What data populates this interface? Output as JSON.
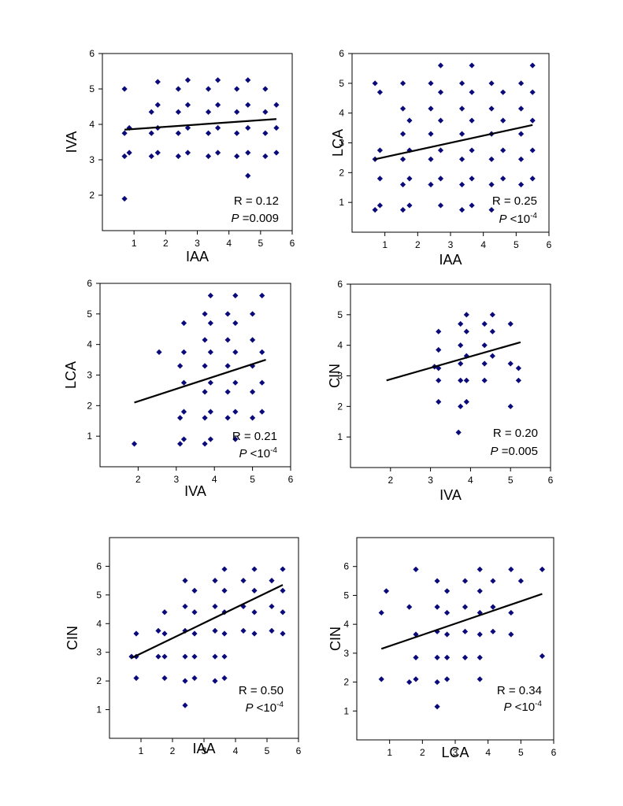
{
  "chart_data": [
    {
      "type": "scatter",
      "xlabel": "IAA",
      "ylabel": "IVA",
      "xlim": [
        0,
        6
      ],
      "ylim": [
        1,
        6
      ],
      "xticks": [
        "1",
        "2",
        "3",
        "4",
        "5",
        "6"
      ],
      "yticks": [
        "2",
        "3",
        "4",
        "5",
        "6"
      ],
      "r_label": "R = 0.12",
      "p_prefix": "P",
      "p_value": " =0.009",
      "p_sup": "",
      "trend": [
        [
          0.7,
          3.85
        ],
        [
          5.5,
          4.15
        ]
      ],
      "points": [
        [
          0.7,
          1.9
        ],
        [
          0.7,
          3.1
        ],
        [
          0.7,
          3.75
        ],
        [
          0.7,
          5.0
        ],
        [
          0.85,
          3.2
        ],
        [
          0.85,
          3.9
        ],
        [
          1.55,
          3.1
        ],
        [
          1.55,
          3.75
        ],
        [
          1.55,
          4.35
        ],
        [
          1.75,
          3.2
        ],
        [
          1.75,
          3.9
        ],
        [
          1.75,
          4.55
        ],
        [
          1.75,
          5.2
        ],
        [
          2.4,
          3.1
        ],
        [
          2.4,
          3.75
        ],
        [
          2.4,
          4.35
        ],
        [
          2.4,
          5.0
        ],
        [
          2.7,
          3.2
        ],
        [
          2.7,
          3.9
        ],
        [
          2.7,
          4.55
        ],
        [
          2.7,
          5.25
        ],
        [
          3.35,
          3.1
        ],
        [
          3.35,
          3.75
        ],
        [
          3.35,
          4.35
        ],
        [
          3.35,
          5.0
        ],
        [
          3.65,
          3.2
        ],
        [
          3.65,
          3.9
        ],
        [
          3.65,
          4.55
        ],
        [
          3.65,
          5.25
        ],
        [
          4.25,
          3.1
        ],
        [
          4.25,
          3.75
        ],
        [
          4.25,
          4.35
        ],
        [
          4.25,
          5.0
        ],
        [
          4.6,
          2.55
        ],
        [
          4.6,
          3.2
        ],
        [
          4.6,
          3.9
        ],
        [
          4.6,
          4.55
        ],
        [
          4.6,
          5.25
        ],
        [
          5.15,
          3.1
        ],
        [
          5.15,
          3.75
        ],
        [
          5.15,
          4.35
        ],
        [
          5.15,
          5.0
        ],
        [
          5.5,
          3.2
        ],
        [
          5.5,
          3.9
        ],
        [
          5.5,
          4.55
        ]
      ]
    },
    {
      "type": "scatter",
      "xlabel": "IAA",
      "ylabel": "LCA",
      "xlim": [
        0,
        6
      ],
      "ylim": [
        0,
        6
      ],
      "xticks": [
        "1",
        "2",
        "3",
        "4",
        "5",
        "6"
      ],
      "yticks": [
        "1",
        "2",
        "3",
        "4",
        "5",
        "6"
      ],
      "r_label": "R = 0.25",
      "p_prefix": "P",
      "p_value": " <10",
      "p_sup": "-4",
      "trend": [
        [
          0.7,
          2.45
        ],
        [
          5.5,
          3.6
        ]
      ],
      "points": [
        [
          0.7,
          0.75
        ],
        [
          0.7,
          2.45
        ],
        [
          0.7,
          5.0
        ],
        [
          0.85,
          0.9
        ],
        [
          0.85,
          1.8
        ],
        [
          0.85,
          2.75
        ],
        [
          0.85,
          4.7
        ],
        [
          1.55,
          0.75
        ],
        [
          1.55,
          1.6
        ],
        [
          1.55,
          2.45
        ],
        [
          1.55,
          3.3
        ],
        [
          1.55,
          4.15
        ],
        [
          1.55,
          5.0
        ],
        [
          1.75,
          0.9
        ],
        [
          1.75,
          1.8
        ],
        [
          1.75,
          2.75
        ],
        [
          1.75,
          3.75
        ],
        [
          2.4,
          1.6
        ],
        [
          2.4,
          2.45
        ],
        [
          2.4,
          3.3
        ],
        [
          2.4,
          4.15
        ],
        [
          2.4,
          5.0
        ],
        [
          2.7,
          0.9
        ],
        [
          2.7,
          1.8
        ],
        [
          2.7,
          2.75
        ],
        [
          2.7,
          3.75
        ],
        [
          2.7,
          4.7
        ],
        [
          2.7,
          5.6
        ],
        [
          3.35,
          0.75
        ],
        [
          3.35,
          1.6
        ],
        [
          3.35,
          2.45
        ],
        [
          3.35,
          3.3
        ],
        [
          3.35,
          4.15
        ],
        [
          3.35,
          5.0
        ],
        [
          3.65,
          0.9
        ],
        [
          3.65,
          1.8
        ],
        [
          3.65,
          2.75
        ],
        [
          3.65,
          3.75
        ],
        [
          3.65,
          4.7
        ],
        [
          3.65,
          5.6
        ],
        [
          4.25,
          0.75
        ],
        [
          4.25,
          1.6
        ],
        [
          4.25,
          2.45
        ],
        [
          4.25,
          3.3
        ],
        [
          4.25,
          4.15
        ],
        [
          4.25,
          5.0
        ],
        [
          4.6,
          1.8
        ],
        [
          4.6,
          2.75
        ],
        [
          4.6,
          3.75
        ],
        [
          4.6,
          4.7
        ],
        [
          5.15,
          1.6
        ],
        [
          5.15,
          2.45
        ],
        [
          5.15,
          3.3
        ],
        [
          5.15,
          4.15
        ],
        [
          5.15,
          5.0
        ],
        [
          5.5,
          1.8
        ],
        [
          5.5,
          2.75
        ],
        [
          5.5,
          3.75
        ],
        [
          5.5,
          4.7
        ],
        [
          5.5,
          5.6
        ]
      ]
    },
    {
      "type": "scatter",
      "xlabel": "IVA",
      "ylabel": "LCA",
      "xlim": [
        1,
        6
      ],
      "ylim": [
        0,
        6
      ],
      "xticks": [
        "2",
        "3",
        "4",
        "5",
        "6"
      ],
      "yticks": [
        "1",
        "2",
        "3",
        "4",
        "5",
        "6"
      ],
      "r_label": "R = 0.21",
      "p_prefix": "P",
      "p_value": " <10",
      "p_sup": "-4",
      "trend": [
        [
          1.9,
          2.1
        ],
        [
          5.35,
          3.5
        ]
      ],
      "points": [
        [
          1.9,
          0.75
        ],
        [
          2.55,
          3.75
        ],
        [
          3.1,
          0.75
        ],
        [
          3.1,
          1.6
        ],
        [
          3.1,
          3.3
        ],
        [
          3.2,
          0.9
        ],
        [
          3.2,
          1.8
        ],
        [
          3.2,
          2.75
        ],
        [
          3.2,
          3.75
        ],
        [
          3.2,
          4.7
        ],
        [
          3.75,
          0.75
        ],
        [
          3.75,
          1.6
        ],
        [
          3.75,
          2.45
        ],
        [
          3.75,
          3.3
        ],
        [
          3.75,
          4.15
        ],
        [
          3.75,
          5.0
        ],
        [
          3.9,
          0.9
        ],
        [
          3.9,
          1.8
        ],
        [
          3.9,
          2.75
        ],
        [
          3.9,
          3.75
        ],
        [
          3.9,
          4.7
        ],
        [
          3.9,
          5.6
        ],
        [
          4.35,
          1.6
        ],
        [
          4.35,
          2.45
        ],
        [
          4.35,
          3.3
        ],
        [
          4.35,
          4.15
        ],
        [
          4.35,
          5.0
        ],
        [
          4.55,
          0.9
        ],
        [
          4.55,
          1.8
        ],
        [
          4.55,
          2.75
        ],
        [
          4.55,
          3.75
        ],
        [
          4.55,
          4.7
        ],
        [
          4.55,
          5.6
        ],
        [
          5.0,
          1.6
        ],
        [
          5.0,
          2.45
        ],
        [
          5.0,
          3.3
        ],
        [
          5.0,
          4.15
        ],
        [
          5.0,
          5.0
        ],
        [
          5.25,
          1.8
        ],
        [
          5.25,
          2.75
        ],
        [
          5.25,
          3.75
        ],
        [
          5.25,
          5.6
        ]
      ]
    },
    {
      "type": "scatter",
      "xlabel": "IVA",
      "ylabel": "CIN",
      "xlim": [
        1,
        6
      ],
      "ylim": [
        0,
        6
      ],
      "xticks": [
        "2",
        "3",
        "4",
        "5",
        "6"
      ],
      "yticks": [
        "1",
        "2",
        "3",
        "4",
        "5",
        "6"
      ],
      "r_label": "R = 0.20",
      "p_prefix": "P",
      "p_value": " =0.005",
      "p_sup": "",
      "trend": [
        [
          1.9,
          2.85
        ],
        [
          5.25,
          4.1
        ]
      ],
      "points": [
        [
          3.1,
          3.3
        ],
        [
          3.2,
          2.15
        ],
        [
          3.2,
          2.85
        ],
        [
          3.2,
          3.25
        ],
        [
          3.2,
          3.85
        ],
        [
          3.2,
          4.45
        ],
        [
          3.7,
          1.15
        ],
        [
          3.75,
          2.0
        ],
        [
          3.75,
          2.85
        ],
        [
          3.75,
          3.4
        ],
        [
          3.75,
          4.0
        ],
        [
          3.75,
          4.7
        ],
        [
          3.9,
          2.15
        ],
        [
          3.9,
          2.85
        ],
        [
          3.9,
          3.65
        ],
        [
          3.9,
          4.45
        ],
        [
          3.9,
          5.0
        ],
        [
          4.35,
          2.85
        ],
        [
          4.35,
          3.4
        ],
        [
          4.35,
          4.0
        ],
        [
          4.35,
          4.7
        ],
        [
          4.55,
          3.65
        ],
        [
          4.55,
          4.45
        ],
        [
          4.55,
          5.0
        ],
        [
          5.0,
          2.0
        ],
        [
          5.0,
          3.4
        ],
        [
          5.0,
          4.7
        ],
        [
          5.2,
          2.85
        ],
        [
          5.2,
          3.25
        ]
      ]
    },
    {
      "type": "scatter",
      "xlabel": "IAA",
      "ylabel": "CIN",
      "xlim": [
        0,
        6
      ],
      "ylim": [
        0,
        7
      ],
      "xticks": [
        "1",
        "2",
        "3",
        "4",
        "5",
        "6"
      ],
      "yticks": [
        "1",
        "2",
        "3",
        "4",
        "5",
        "6"
      ],
      "r_label": "R = 0.50",
      "p_prefix": "P",
      "p_value": " <10",
      "p_sup": "-4",
      "trend": [
        [
          0.7,
          2.8
        ],
        [
          5.5,
          5.35
        ]
      ],
      "points": [
        [
          0.7,
          2.85
        ],
        [
          0.85,
          2.1
        ],
        [
          0.85,
          2.85
        ],
        [
          0.85,
          3.65
        ],
        [
          1.55,
          2.85
        ],
        [
          1.55,
          3.75
        ],
        [
          1.75,
          2.1
        ],
        [
          1.75,
          2.85
        ],
        [
          1.75,
          3.65
        ],
        [
          1.75,
          4.4
        ],
        [
          2.4,
          1.15
        ],
        [
          2.4,
          2.0
        ],
        [
          2.4,
          2.85
        ],
        [
          2.4,
          3.75
        ],
        [
          2.4,
          4.6
        ],
        [
          2.4,
          5.5
        ],
        [
          2.7,
          2.1
        ],
        [
          2.7,
          2.85
        ],
        [
          2.7,
          3.65
        ],
        [
          2.7,
          4.4
        ],
        [
          2.7,
          5.15
        ],
        [
          3.35,
          2.0
        ],
        [
          3.35,
          2.85
        ],
        [
          3.35,
          3.75
        ],
        [
          3.35,
          4.6
        ],
        [
          3.35,
          5.5
        ],
        [
          3.65,
          2.1
        ],
        [
          3.65,
          2.85
        ],
        [
          3.65,
          3.65
        ],
        [
          3.65,
          4.4
        ],
        [
          3.65,
          5.15
        ],
        [
          3.65,
          5.9
        ],
        [
          4.25,
          3.75
        ],
        [
          4.25,
          4.6
        ],
        [
          4.25,
          5.5
        ],
        [
          4.6,
          3.65
        ],
        [
          4.6,
          4.4
        ],
        [
          4.6,
          5.15
        ],
        [
          4.6,
          5.9
        ],
        [
          5.15,
          3.75
        ],
        [
          5.15,
          4.6
        ],
        [
          5.15,
          5.5
        ],
        [
          5.5,
          3.65
        ],
        [
          5.5,
          4.4
        ],
        [
          5.5,
          5.15
        ],
        [
          5.5,
          5.9
        ]
      ]
    },
    {
      "type": "scatter",
      "xlabel": "LCA",
      "ylabel": "CIN",
      "xlim": [
        0,
        6
      ],
      "ylim": [
        0,
        7
      ],
      "xticks": [
        "1",
        "2",
        "3",
        "4",
        "5",
        "6"
      ],
      "yticks": [
        "1",
        "2",
        "3",
        "4",
        "5",
        "6"
      ],
      "r_label": "R = 0.34",
      "p_prefix": "P",
      "p_value": " <10",
      "p_sup": "-4",
      "trend": [
        [
          0.75,
          3.15
        ],
        [
          5.65,
          5.05
        ]
      ],
      "points": [
        [
          0.75,
          2.1
        ],
        [
          0.75,
          4.4
        ],
        [
          0.9,
          5.15
        ],
        [
          1.6,
          2.0
        ],
        [
          1.6,
          4.6
        ],
        [
          1.8,
          2.1
        ],
        [
          1.8,
          2.85
        ],
        [
          1.8,
          3.65
        ],
        [
          1.8,
          5.9
        ],
        [
          2.45,
          1.15
        ],
        [
          2.45,
          2.0
        ],
        [
          2.45,
          2.85
        ],
        [
          2.45,
          3.75
        ],
        [
          2.45,
          4.6
        ],
        [
          2.45,
          5.5
        ],
        [
          2.75,
          2.1
        ],
        [
          2.75,
          2.85
        ],
        [
          2.75,
          3.65
        ],
        [
          2.75,
          4.4
        ],
        [
          2.75,
          5.15
        ],
        [
          3.3,
          2.85
        ],
        [
          3.3,
          3.75
        ],
        [
          3.3,
          4.6
        ],
        [
          3.3,
          5.5
        ],
        [
          3.75,
          2.1
        ],
        [
          3.75,
          2.85
        ],
        [
          3.75,
          3.65
        ],
        [
          3.75,
          4.4
        ],
        [
          3.75,
          5.15
        ],
        [
          3.75,
          5.9
        ],
        [
          4.15,
          3.75
        ],
        [
          4.15,
          4.6
        ],
        [
          4.15,
          5.5
        ],
        [
          4.7,
          3.65
        ],
        [
          4.7,
          4.4
        ],
        [
          4.7,
          5.9
        ],
        [
          5.0,
          5.5
        ],
        [
          5.65,
          2.9
        ],
        [
          5.65,
          5.9
        ]
      ]
    }
  ],
  "colors": {
    "marker": "#0a0a7a",
    "trend": "#000000",
    "frame": "#000000"
  }
}
